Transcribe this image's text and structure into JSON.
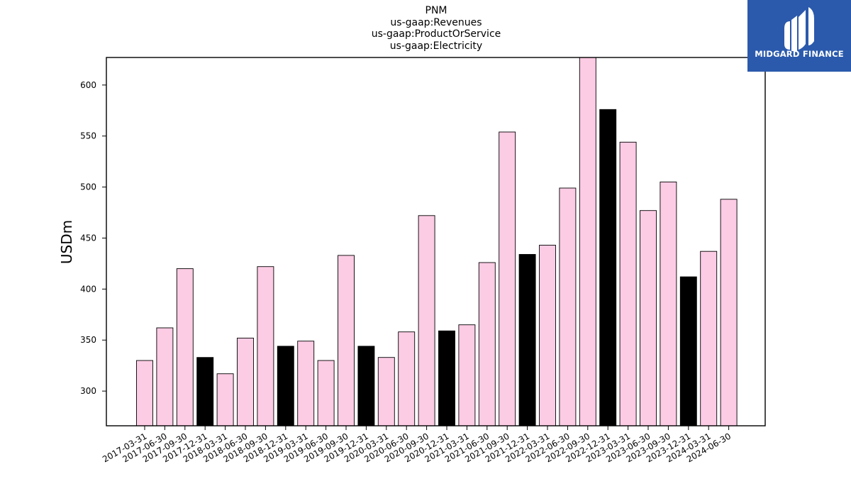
{
  "chart_data": {
    "type": "bar",
    "title": [
      "PNM",
      "us-gaap:Revenues",
      "us-gaap:ProductOrService",
      "us-gaap:Electricity"
    ],
    "xlabel": "",
    "ylabel": "USDm",
    "ylim": [
      266,
      627
    ],
    "yticks": [
      300,
      350,
      400,
      450,
      500,
      550,
      600
    ],
    "categories": [
      "2017-03-31",
      "2017-06-30",
      "2017-09-30",
      "2017-12-31",
      "2018-03-31",
      "2018-06-30",
      "2018-09-30",
      "2018-12-31",
      "2019-03-31",
      "2019-06-30",
      "2019-09-30",
      "2019-12-31",
      "2020-03-31",
      "2020-06-30",
      "2020-09-30",
      "2020-12-31",
      "2021-03-31",
      "2021-06-30",
      "2021-09-30",
      "2021-12-31",
      "2022-03-31",
      "2022-06-30",
      "2022-09-30",
      "2022-12-31",
      "2023-03-31",
      "2023-06-30",
      "2023-09-30",
      "2023-12-31",
      "2024-03-31",
      "2024-06-30"
    ],
    "values": [
      330,
      362,
      420,
      333,
      317,
      352,
      422,
      344,
      349,
      330,
      433,
      344,
      333,
      358,
      472,
      359,
      365,
      426,
      554,
      434,
      443,
      499,
      630,
      576,
      544,
      477,
      505,
      412,
      437,
      488
    ],
    "highlight": [
      false,
      false,
      false,
      true,
      false,
      false,
      false,
      true,
      false,
      false,
      false,
      true,
      false,
      false,
      false,
      true,
      false,
      false,
      false,
      true,
      false,
      false,
      false,
      true,
      false,
      false,
      false,
      true,
      false,
      false
    ],
    "colors": {
      "bar": "#fccbe4",
      "highlight": "#000000",
      "edge": "#000000"
    },
    "grid": false
  },
  "logo": {
    "text": "MIDGARD FINANCE",
    "background": "#2b5aac"
  }
}
